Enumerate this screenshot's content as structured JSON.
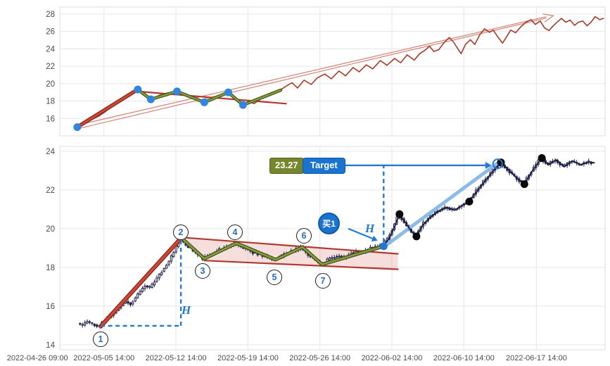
{
  "colors": {
    "accent_blue": "#2479cf",
    "light_blue": "#85b7e8",
    "dark_red": "#a63a28",
    "bright_red": "#cf4a36",
    "deep_red": "#8f2a1e",
    "wedge_red": "#b03a30",
    "olive_core": "#85a23c",
    "olive_edge": "#45521b",
    "navy": "#1b2147",
    "candle": "#23234a",
    "pink_fill": "rgba(205,92,80,0.20)",
    "grid": "#e6e6e6",
    "border": "#dcdcdc",
    "axis_text": "#4a4a4a",
    "dot_black": "#0a0a0a",
    "dot_blue": "#2e86de",
    "projection": "#d08275",
    "label_olive_bg": "#75862c",
    "label_olive_border": "#55621e",
    "label_blue_bg": "#1a73ce",
    "label_blue_border": "#0f5aa8"
  },
  "chart_data": [
    {
      "id": "overview",
      "type": "line",
      "title": "",
      "xlabel": "",
      "ylabel": "",
      "ylim": [
        14.0,
        28.8
      ],
      "y_ticks": [
        16,
        18,
        20,
        22,
        24,
        26,
        28
      ],
      "x_gridlines": [
        8.1,
        21.3,
        34.5,
        47.7,
        60.9,
        74.1,
        87.4
      ],
      "series": [
        {
          "name": "close",
          "color": "#a63a28",
          "points": [
            [
              3.2,
              15.0
            ],
            [
              4.5,
              15.35
            ],
            [
              5.8,
              15.85
            ],
            [
              7.1,
              16.25
            ],
            [
              8.4,
              16.8
            ],
            [
              9.7,
              17.45
            ],
            [
              10.9,
              18.0
            ],
            [
              12.2,
              18.5
            ],
            [
              13.5,
              19.05
            ],
            [
              14.3,
              19.35
            ],
            [
              15.4,
              18.65
            ],
            [
              16.7,
              18.2
            ],
            [
              18.4,
              18.7
            ],
            [
              19.9,
              18.95
            ],
            [
              21.5,
              19.1
            ],
            [
              22.8,
              18.65
            ],
            [
              24.4,
              18.25
            ],
            [
              26.5,
              17.85
            ],
            [
              27.7,
              18.25
            ],
            [
              29.2,
              18.65
            ],
            [
              30.9,
              19.0
            ],
            [
              32.2,
              18.25
            ],
            [
              33.6,
              17.55
            ],
            [
              34.7,
              18.0
            ],
            [
              35.6,
              17.7
            ],
            [
              36.9,
              18.25
            ],
            [
              38.2,
              18.7
            ],
            [
              39.5,
              19.05
            ],
            [
              40.5,
              19.3
            ],
            [
              41.6,
              19.75
            ],
            [
              42.6,
              20.1
            ],
            [
              43.6,
              19.5
            ],
            [
              44.8,
              20.4
            ],
            [
              46.1,
              19.9
            ],
            [
              47.2,
              20.65
            ],
            [
              48.6,
              21.1
            ],
            [
              49.8,
              20.55
            ],
            [
              51.2,
              21.45
            ],
            [
              52.4,
              20.9
            ],
            [
              53.8,
              21.85
            ],
            [
              54.9,
              21.35
            ],
            [
              56.2,
              22.15
            ],
            [
              57.4,
              21.7
            ],
            [
              58.8,
              22.65
            ],
            [
              60.0,
              22.1
            ],
            [
              61.4,
              22.9
            ],
            [
              62.5,
              22.4
            ],
            [
              63.7,
              23.3
            ],
            [
              65.0,
              22.7
            ],
            [
              66.0,
              23.45
            ],
            [
              67.0,
              23.85
            ],
            [
              67.8,
              24.3
            ],
            [
              68.6,
              23.7
            ],
            [
              69.5,
              23.9
            ],
            [
              70.4,
              24.65
            ],
            [
              71.4,
              25.3
            ],
            [
              72.2,
              24.8
            ],
            [
              73.0,
              24.0
            ],
            [
              73.6,
              23.45
            ],
            [
              74.4,
              24.5
            ],
            [
              75.3,
              25.05
            ],
            [
              76.1,
              24.5
            ],
            [
              77.0,
              25.6
            ],
            [
              77.9,
              26.3
            ],
            [
              78.8,
              25.9
            ],
            [
              79.5,
              26.15
            ],
            [
              80.4,
              25.3
            ],
            [
              81.2,
              24.65
            ],
            [
              82.0,
              25.45
            ],
            [
              82.7,
              26.15
            ],
            [
              83.6,
              25.85
            ],
            [
              84.5,
              26.5
            ],
            [
              85.5,
              27.05
            ],
            [
              86.4,
              27.35
            ],
            [
              87.2,
              26.8
            ],
            [
              88.1,
              27.2
            ],
            [
              88.9,
              26.4
            ],
            [
              89.7,
              26.1
            ],
            [
              90.5,
              26.65
            ],
            [
              91.2,
              27.05
            ],
            [
              92.0,
              27.5
            ],
            [
              92.8,
              27.05
            ],
            [
              93.6,
              27.3
            ],
            [
              94.4,
              26.7
            ],
            [
              95.1,
              27.05
            ],
            [
              95.9,
              27.2
            ],
            [
              96.7,
              26.65
            ],
            [
              97.4,
              27.05
            ],
            [
              98.2,
              27.7
            ],
            [
              99.0,
              27.35
            ],
            [
              99.7,
              27.5
            ]
          ]
        }
      ],
      "pivot_dots": {
        "color": "#2e86de",
        "radius": 5.5,
        "points": [
          [
            3.2,
            15.0
          ],
          [
            14.3,
            19.33
          ],
          [
            16.7,
            18.2
          ],
          [
            21.5,
            19.1
          ],
          [
            26.5,
            17.85
          ],
          [
            30.9,
            19.0
          ],
          [
            33.6,
            17.55
          ]
        ]
      },
      "flagpole": [
        [
          3.2,
          15.0
        ],
        [
          14.3,
          19.33
        ]
      ],
      "zigzag": [
        [
          14.3,
          19.33
        ],
        [
          16.7,
          18.2
        ],
        [
          21.5,
          19.1
        ],
        [
          26.5,
          17.85
        ],
        [
          30.9,
          19.0
        ],
        [
          33.6,
          17.55
        ],
        [
          40.5,
          19.25
        ]
      ],
      "trend_line": [
        [
          14.3,
          19.1
        ],
        [
          41.5,
          17.7
        ]
      ],
      "projection_arrow": {
        "from": [
          3.4,
          15.05
        ],
        "to": [
          90.5,
          27.8
        ]
      }
    },
    {
      "id": "detail",
      "type": "candlestick",
      "title": "",
      "xlabel": "",
      "ylabel": "",
      "ylim": [
        13.74,
        24.25
      ],
      "y_ticks": [
        14,
        16,
        18,
        20,
        22,
        24
      ],
      "x_ticks": [
        {
          "label": "2022-04-26 09:00",
          "u": -4.1
        },
        {
          "label": "2022-05-05 14:00",
          "u": 8.1
        },
        {
          "label": "2022-05-12 14:00",
          "u": 21.3
        },
        {
          "label": "2022-05-19 14:00",
          "u": 34.5
        },
        {
          "label": "2022-05-26 14:00",
          "u": 47.7
        },
        {
          "label": "2022-06-02 14:00",
          "u": 60.9
        },
        {
          "label": "2022-06-10 14:00",
          "u": 74.1
        },
        {
          "label": "2022-06-17 14:00",
          "u": 87.4
        }
      ],
      "price_path": [
        [
          3.5,
          15.1
        ],
        [
          4.3,
          15.0
        ],
        [
          5.2,
          15.2
        ],
        [
          6.3,
          15.05
        ],
        [
          7.5,
          14.95
        ],
        [
          8.6,
          15.3
        ],
        [
          9.8,
          15.55
        ],
        [
          11,
          15.9
        ],
        [
          12.2,
          16.25
        ],
        [
          13.2,
          16.1
        ],
        [
          14.5,
          16.6
        ],
        [
          15.8,
          17.05
        ],
        [
          16.8,
          16.95
        ],
        [
          18,
          17.45
        ],
        [
          19.2,
          17.9
        ],
        [
          20.3,
          18.35
        ],
        [
          21.3,
          18.9
        ],
        [
          22.2,
          19.55
        ],
        [
          23.5,
          19.1
        ],
        [
          25,
          18.8
        ],
        [
          26.5,
          18.45
        ],
        [
          28.2,
          18.75
        ],
        [
          30.2,
          19.0
        ],
        [
          32.4,
          19.25
        ],
        [
          34.2,
          18.95
        ],
        [
          36.2,
          18.7
        ],
        [
          38,
          18.55
        ],
        [
          39.6,
          18.4
        ],
        [
          41.3,
          18.65
        ],
        [
          43,
          18.85
        ],
        [
          44.5,
          19.05
        ],
        [
          46,
          18.6
        ],
        [
          47.1,
          18.35
        ],
        [
          48.1,
          18.15
        ],
        [
          49.6,
          18.45
        ],
        [
          51.2,
          18.6
        ],
        [
          52.6,
          18.5
        ],
        [
          54.2,
          18.85
        ],
        [
          55.6,
          18.75
        ],
        [
          57.2,
          19.0
        ],
        [
          58.4,
          19.1
        ],
        [
          59.4,
          19.15
        ],
        [
          60.4,
          19.5
        ],
        [
          61.4,
          20.1
        ],
        [
          62.3,
          20.75
        ],
        [
          63.4,
          20.3
        ],
        [
          64.4,
          19.9
        ],
        [
          65.4,
          19.6
        ],
        [
          66.6,
          20.2
        ],
        [
          68,
          20.6
        ],
        [
          69.4,
          20.9
        ],
        [
          71,
          21.1
        ],
        [
          72.4,
          20.95
        ],
        [
          73.8,
          21.2
        ],
        [
          75.1,
          21.4
        ],
        [
          76.4,
          21.9
        ],
        [
          77.8,
          22.4
        ],
        [
          79.4,
          22.95
        ],
        [
          80.9,
          23.4
        ],
        [
          82.1,
          23.1
        ],
        [
          83.5,
          22.7
        ],
        [
          85.2,
          22.3
        ],
        [
          86.6,
          22.95
        ],
        [
          88.4,
          23.65
        ],
        [
          89.6,
          23.3
        ],
        [
          91,
          23.55
        ],
        [
          92.5,
          23.2
        ],
        [
          94,
          23.5
        ],
        [
          95.5,
          23.3
        ],
        [
          97,
          23.45
        ],
        [
          98,
          23.4
        ]
      ],
      "flagpole": [
        [
          7.5,
          14.95
        ],
        [
          22.2,
          19.5
        ]
      ],
      "zigzag": [
        [
          22.2,
          19.55
        ],
        [
          26.5,
          18.45
        ],
        [
          32.4,
          19.25
        ],
        [
          39.6,
          18.4
        ],
        [
          44.5,
          19.05
        ],
        [
          48.1,
          18.15
        ],
        [
          59.4,
          19.09
        ]
      ],
      "wedge": {
        "upper": [
          [
            22.2,
            19.55
          ],
          [
            62,
            18.7
          ]
        ],
        "lower": [
          [
            26.5,
            18.35
          ],
          [
            62,
            17.9
          ]
        ],
        "fill": [
          [
            22.2,
            19.55
          ],
          [
            62,
            18.7
          ],
          [
            62,
            17.9
          ],
          [
            26.5,
            18.35
          ]
        ]
      },
      "breakout_trend": [
        [
          59.4,
          19.05
        ],
        [
          80.6,
          23.45
        ]
      ],
      "overlay_from": 59.4,
      "black_dots": [
        [
          62.3,
          20.75
        ],
        [
          65.4,
          19.6
        ],
        [
          75.1,
          21.4
        ],
        [
          80.9,
          23.42
        ],
        [
          85.2,
          22.3
        ],
        [
          88.4,
          23.65
        ]
      ],
      "breakout_dot": [
        59.4,
        19.09
      ],
      "target_ring": [
        80.3,
        23.35
      ],
      "annotations": {
        "numbered_points": [
          "1",
          "2",
          "3",
          "4",
          "5",
          "6",
          "7"
        ],
        "height_label": "H",
        "buy_marker": {
          "label": "买1",
          "at": [
            59.4,
            19.09
          ]
        },
        "target": {
          "price_label": "23.27",
          "label": "Target",
          "price": 23.27
        },
        "measure1": {
          "h": [
            [
              7.5,
              14.98
            ],
            [
              22.2,
              14.98
            ]
          ],
          "v": [
            [
              22.2,
              14.98
            ],
            [
              22.2,
              19.5
            ]
          ]
        },
        "measure2": {
          "v": [
            [
              59.4,
              19.3
            ],
            [
              59.4,
              23.27
            ]
          ]
        },
        "target_arrow": {
          "from": [
            52.3,
            23.27
          ],
          "to": [
            79.2,
            23.27
          ]
        },
        "buy_pointer": {
          "from": [
            52.9,
            20.0
          ],
          "to": [
            58.3,
            19.38
          ]
        }
      }
    }
  ]
}
